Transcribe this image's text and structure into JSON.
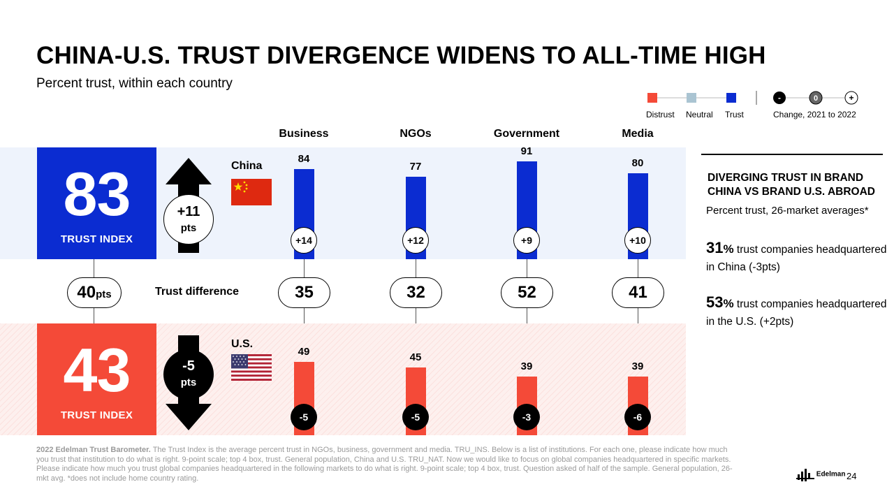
{
  "header": {
    "title": "CHINA-U.S. TRUST DIVERGENCE WIDENS TO ALL-TIME HIGH",
    "subtitle": "Percent trust, within each country"
  },
  "legend": {
    "distrust": "Distrust",
    "neutral": "Neutral",
    "trust": "Trust",
    "minus_symbol": "-",
    "zero_symbol": "0",
    "plus_symbol": "+",
    "change_label": "Change, 2021 to 2022",
    "colors": {
      "distrust": "#f44a38",
      "neutral": "#aac4d2",
      "trust": "#0b2cd1"
    }
  },
  "china": {
    "country": "China",
    "trust_index": "83",
    "trust_index_label": "TRUST INDEX",
    "change_value": "+11",
    "change_unit": "pts"
  },
  "us": {
    "country": "U.S.",
    "trust_index": "43",
    "trust_index_label": "TRUST INDEX",
    "change_value": "-5",
    "change_unit": "pts"
  },
  "gap": {
    "value": "40",
    "unit": "pts",
    "label": "Trust difference"
  },
  "chart_data": {
    "type": "bar",
    "title": "Percent trust, within each country",
    "categories": [
      "Business",
      "NGOs",
      "Government",
      "Media"
    ],
    "ylim": [
      0,
      100
    ],
    "series": [
      {
        "name": "China",
        "values": [
          84,
          77,
          91,
          80
        ],
        "change": [
          "+14",
          "+12",
          "+9",
          "+10"
        ],
        "color": "#0b2cd1"
      },
      {
        "name": "U.S.",
        "values": [
          49,
          45,
          39,
          39
        ],
        "change": [
          "-5",
          "-5",
          "-3",
          "-6"
        ],
        "color": "#f44a38"
      }
    ],
    "difference": [
      "35",
      "32",
      "52",
      "41"
    ]
  },
  "sidebar": {
    "heading_line1": "DIVERGING TRUST IN BRAND",
    "heading_line2": "CHINA VS BRAND U.S. ABROAD",
    "subheading": "Percent trust, 26-market averages*",
    "stat1_value": "31",
    "stat1_pct": "%",
    "stat1_text": " trust companies headquartered in China (-3pts)",
    "stat2_value": "53",
    "stat2_pct": "%",
    "stat2_text": " trust companies headquartered in the U.S. (+2pts)"
  },
  "footer": {
    "source_bold": "2022 Edelman Trust Barometer.",
    "source_text": " The Trust Index is the average percent trust in NGOs, business, government and media. TRU_INS. Below is a list of institutions. For each one, please indicate how much you trust that institution to do what is right. 9-point scale; top 4 box, trust. General population, China and U.S. TRU_NAT. Now we would like to focus on global companies headquartered in specific markets. Please indicate how much you trust global companies headquartered in the following markets to do what is right. 9-point scale; top 4 box, trust. Question asked of half of the sample. General population, 26-mkt avg. *does not include home country rating.",
    "logo_text": "Edelman",
    "page_number": "24"
  }
}
